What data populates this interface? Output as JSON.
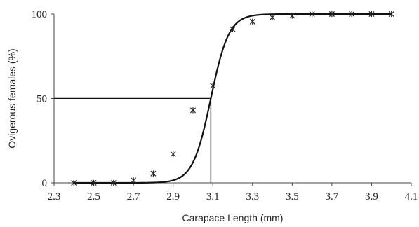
{
  "chart_data": {
    "type": "scatter",
    "title": "",
    "xlabel": "Carapace Length (mm)",
    "ylabel": "Ovigerous females (%)",
    "xlim": [
      2.3,
      4.1
    ],
    "ylim": [
      0,
      100
    ],
    "x_ticks": [
      "2.3",
      "2.5",
      "2.7",
      "2.9",
      "3.1",
      "3.3",
      "3.5",
      "3.7",
      "3.9",
      "4.1"
    ],
    "y_ticks": [
      "0",
      "50",
      "100"
    ],
    "grid": false,
    "legend": "none",
    "marker": "asterisk",
    "series": [
      {
        "x": [
          2.4,
          2.5,
          2.6,
          2.7,
          2.8,
          2.9,
          3.0,
          3.1,
          3.2,
          3.3,
          3.4,
          3.5,
          3.6,
          3.7,
          3.8,
          3.9,
          4.0
        ],
        "y": [
          0,
          0,
          0,
          1.5,
          5.5,
          17,
          43,
          57.5,
          91,
          95.5,
          98,
          99,
          100,
          100,
          100,
          100,
          100
        ]
      }
    ],
    "fitted_curve": {
      "type": "logistic",
      "x50": 3.09,
      "slope": 22,
      "color": "#111111"
    },
    "reference_lines": {
      "x": 3.09,
      "y": 50
    }
  }
}
